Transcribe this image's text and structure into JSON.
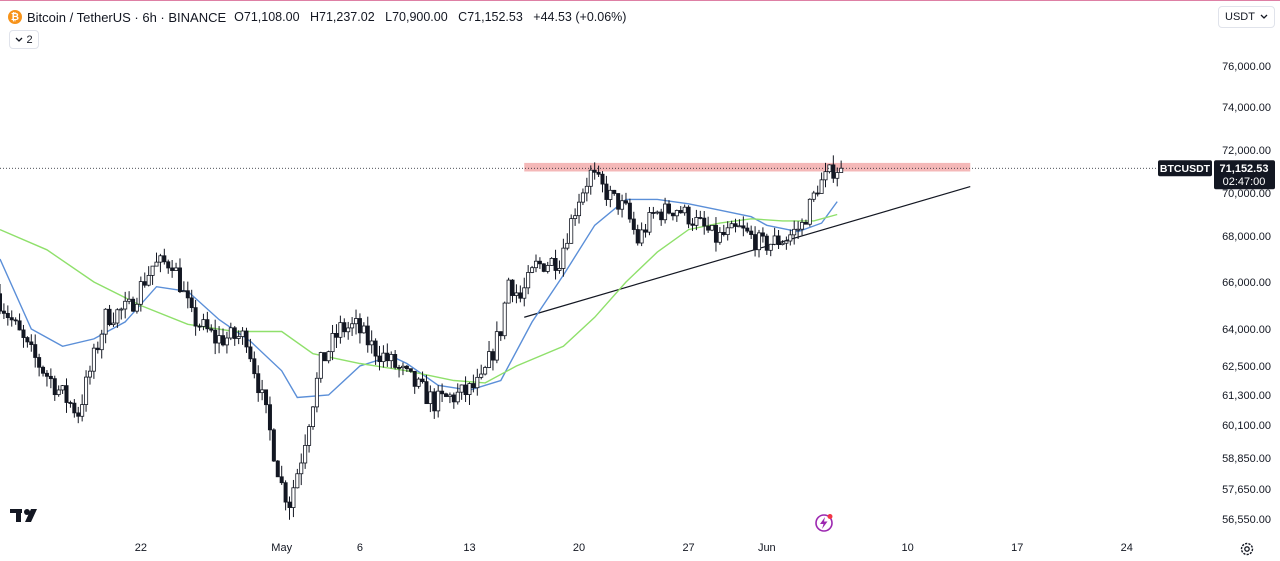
{
  "legend": {
    "symbol": "Bitcoin / TetherUS · 6h · BINANCE",
    "open_key": "O",
    "open": "71,108.00",
    "high_key": "H",
    "high": "71,237.02",
    "low_key": "L",
    "low": "70,900.00",
    "close_key": "C",
    "close": "71,152.53",
    "change": "+44.53 (+0.06%)",
    "indicator_count": "2",
    "coin_icon": "bitcoin-coin-icon"
  },
  "currency_selector": {
    "value": "USDT"
  },
  "price_label": {
    "ticker": "BTCUSDT",
    "price": "71,152.53",
    "countdown": "02:47:00"
  },
  "colors": {
    "up": "#131722",
    "down": "#131722",
    "ma_fast": "#5b8fd8",
    "ma_slow": "#8fe06b",
    "resistance_zone": "#ef9a9a",
    "trendline": "#131722",
    "accent": "#c2185b"
  },
  "chart_data": {
    "type": "candlestick",
    "title": "",
    "xlabel": "",
    "ylabel": "",
    "ylim": [
      56300,
      77300
    ],
    "y_ticks": [
      "76,000.00",
      "74,000.00",
      "72,000.00",
      "70,000.00",
      "68,000.00",
      "66,000.00",
      "64,000.00",
      "62,500.00",
      "61,300.00",
      "60,100.00",
      "58,850.00",
      "57,650.00",
      "56,550.00"
    ],
    "y_tick_values": [
      76000,
      74000,
      72000,
      70000,
      68000,
      66000,
      64000,
      62500,
      61300,
      60100,
      58850,
      57650,
      56550
    ],
    "x_ticks": [
      "22",
      "May",
      "6",
      "13",
      "20",
      "27",
      "Jun",
      "10",
      "17",
      "24"
    ],
    "x_tick_dates": [
      "2024-04-22",
      "2024-05-01",
      "2024-05-06",
      "2024-05-13",
      "2024-05-20",
      "2024-05-27",
      "2024-06-01",
      "2024-06-10",
      "2024-06-17",
      "2024-06-24"
    ],
    "x_range": [
      "2024-04-13",
      "2024-06-29"
    ],
    "candle_interval": "6h",
    "anchors": [
      [
        "2024-04-13T00:00",
        65500
      ],
      [
        "2024-04-15T00:00",
        63200
      ],
      [
        "2024-04-17T00:00",
        61500
      ],
      [
        "2024-04-18T06:00",
        60600
      ],
      [
        "2024-04-20T00:00",
        64500
      ],
      [
        "2024-04-21T12:00",
        64900
      ],
      [
        "2024-04-23T00:00",
        66700
      ],
      [
        "2024-04-24T06:00",
        66900
      ],
      [
        "2024-04-25T12:00",
        64500
      ],
      [
        "2024-04-27T00:00",
        63600
      ],
      [
        "2024-04-29T00:00",
        63700
      ],
      [
        "2024-04-30T06:00",
        60500
      ],
      [
        "2024-05-01T06:00",
        57800
      ],
      [
        "2024-05-01T18:00",
        57200
      ],
      [
        "2024-05-02T12:00",
        58900
      ],
      [
        "2024-05-03T18:00",
        62600
      ],
      [
        "2024-05-05T00:00",
        64000
      ],
      [
        "2024-05-06T00:00",
        64100
      ],
      [
        "2024-05-07T00:00",
        63300
      ],
      [
        "2024-05-08T12:00",
        62500
      ],
      [
        "2024-05-10T00:00",
        61600
      ],
      [
        "2024-05-11T00:00",
        61000
      ],
      [
        "2024-05-13T00:00",
        61400
      ],
      [
        "2024-05-14T00:00",
        61800
      ],
      [
        "2024-05-15T06:00",
        64000
      ],
      [
        "2024-05-15T18:00",
        66100
      ],
      [
        "2024-05-16T12:00",
        65300
      ],
      [
        "2024-05-17T12:00",
        66700
      ],
      [
        "2024-05-19T00:00",
        67000
      ],
      [
        "2024-05-20T06:00",
        69800
      ],
      [
        "2024-05-21T00:00",
        70900
      ],
      [
        "2024-05-22T00:00",
        70000
      ],
      [
        "2024-05-23T06:00",
        69200
      ],
      [
        "2024-05-24T00:00",
        67800
      ],
      [
        "2024-05-25T00:00",
        69000
      ],
      [
        "2024-05-26T12:00",
        69300
      ],
      [
        "2024-05-28T00:00",
        68500
      ],
      [
        "2024-05-29T00:00",
        67900
      ],
      [
        "2024-05-30T12:00",
        68300
      ],
      [
        "2024-06-01T00:00",
        67600
      ],
      [
        "2024-06-02T12:00",
        67900
      ],
      [
        "2024-06-03T12:00",
        68500
      ],
      [
        "2024-06-04T12:00",
        70300
      ],
      [
        "2024-06-05T12:00",
        71100
      ],
      [
        "2024-06-05T18:00",
        71152.53
      ]
    ],
    "series": [
      {
        "type": "ma",
        "color": "#5b8fd8",
        "points": [
          [
            "2024-04-13T00:00",
            67000
          ],
          [
            "2024-04-15T00:00",
            64000
          ],
          [
            "2024-04-17T00:00",
            63300
          ],
          [
            "2024-04-19T00:00",
            63600
          ],
          [
            "2024-04-21T00:00",
            64300
          ],
          [
            "2024-04-23T00:00",
            65800
          ],
          [
            "2024-04-25T00:00",
            65600
          ],
          [
            "2024-04-27T00:00",
            64400
          ],
          [
            "2024-04-29T00:00",
            63500
          ],
          [
            "2024-05-01T00:00",
            62300
          ],
          [
            "2024-05-02T00:00",
            61200
          ],
          [
            "2024-05-04T00:00",
            61300
          ],
          [
            "2024-05-06T00:00",
            62500
          ],
          [
            "2024-05-08T00:00",
            62900
          ],
          [
            "2024-05-09T00:00",
            62600
          ],
          [
            "2024-05-11T00:00",
            61700
          ],
          [
            "2024-05-13T00:00",
            61500
          ],
          [
            "2024-05-15T00:00",
            61900
          ],
          [
            "2024-05-17T00:00",
            64300
          ],
          [
            "2024-05-19T00:00",
            66300
          ],
          [
            "2024-05-21T00:00",
            68500
          ],
          [
            "2024-05-23T00:00",
            69700
          ],
          [
            "2024-05-25T00:00",
            69700
          ],
          [
            "2024-05-27T00:00",
            69500
          ],
          [
            "2024-05-29T00:00",
            69200
          ],
          [
            "2024-05-31T00:00",
            68900
          ],
          [
            "2024-06-01T00:00",
            68500
          ],
          [
            "2024-06-03T00:00",
            68200
          ],
          [
            "2024-06-04T12:00",
            68600
          ],
          [
            "2024-06-05T12:00",
            69600
          ]
        ]
      },
      {
        "type": "ma",
        "color": "#8fe06b",
        "points": [
          [
            "2024-04-13T00:00",
            68300
          ],
          [
            "2024-04-16T00:00",
            67400
          ],
          [
            "2024-04-19T00:00",
            66000
          ],
          [
            "2024-04-22T00:00",
            65000
          ],
          [
            "2024-04-25T00:00",
            64200
          ],
          [
            "2024-04-28T00:00",
            63900
          ],
          [
            "2024-05-01T00:00",
            63900
          ],
          [
            "2024-05-03T00:00",
            63000
          ],
          [
            "2024-05-06T00:00",
            62600
          ],
          [
            "2024-05-09T00:00",
            62300
          ],
          [
            "2024-05-12T00:00",
            61900
          ],
          [
            "2024-05-14T00:00",
            61800
          ],
          [
            "2024-05-16T00:00",
            62500
          ],
          [
            "2024-05-19T00:00",
            63300
          ],
          [
            "2024-05-21T00:00",
            64500
          ],
          [
            "2024-05-23T00:00",
            66000
          ],
          [
            "2024-05-25T00:00",
            67300
          ],
          [
            "2024-05-27T00:00",
            68300
          ],
          [
            "2024-05-29T00:00",
            68600
          ],
          [
            "2024-05-31T00:00",
            68800
          ],
          [
            "2024-06-02T00:00",
            68700
          ],
          [
            "2024-06-04T00:00",
            68700
          ],
          [
            "2024-06-05T12:00",
            69000
          ]
        ]
      }
    ],
    "resistance_zone": {
      "from": "2024-05-16T12:00",
      "to": "2024-06-14T00:00",
      "low": 71000,
      "high": 71400
    },
    "trendline": {
      "start": [
        "2024-05-16T12:00",
        64500
      ],
      "end": [
        "2024-06-14T00:00",
        70300
      ]
    },
    "last_price": 71152.53
  }
}
